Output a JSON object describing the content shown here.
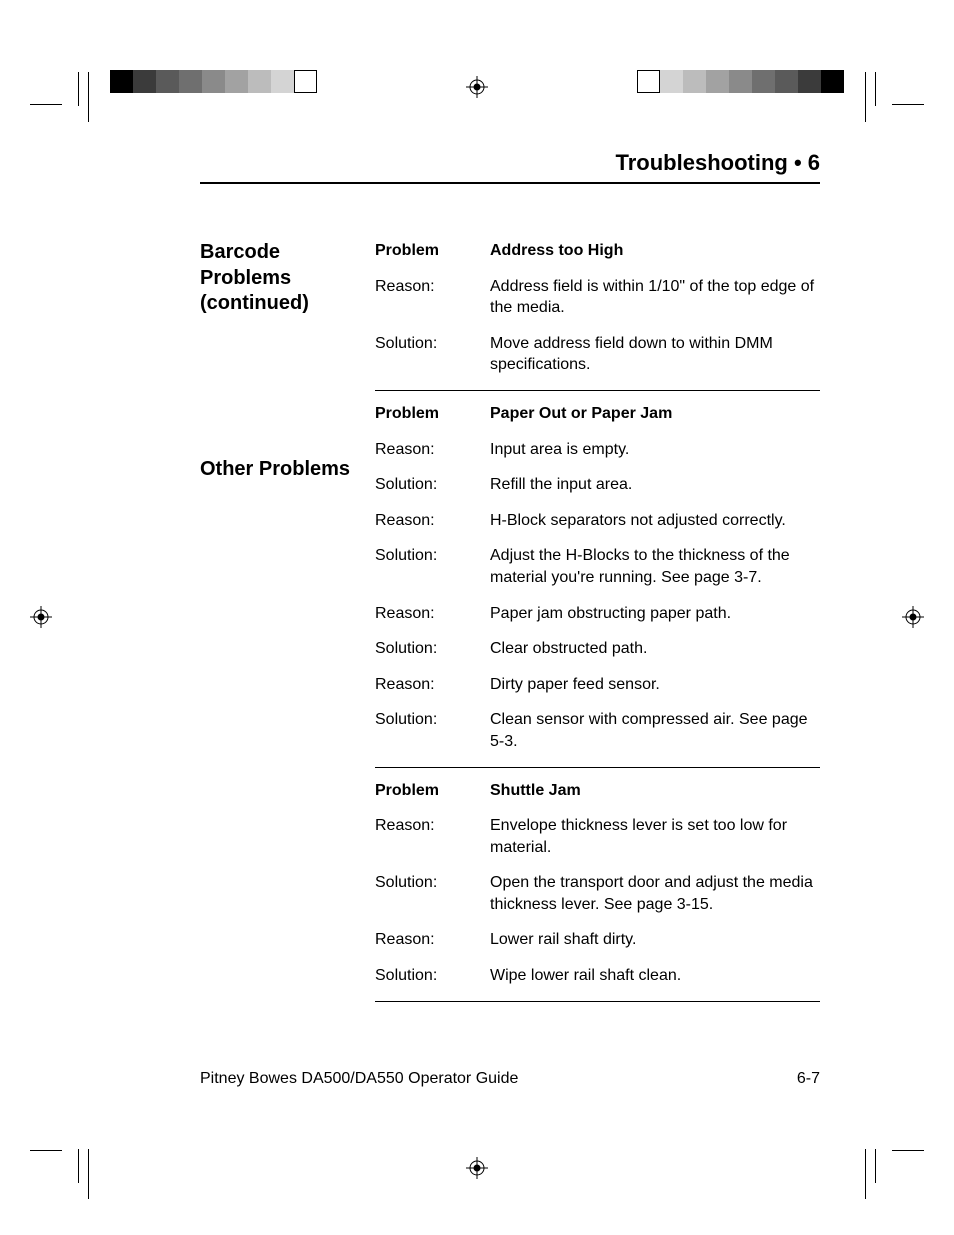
{
  "colorbar": {
    "swatches": [
      "#000000",
      "#3b3b3b",
      "#5a5a5a",
      "#6f6f6f",
      "#8a8a8a",
      "#a2a2a2",
      "#bcbcbc",
      "#d4d4d4",
      "#ffffff"
    ],
    "border": "#000000"
  },
  "header": {
    "title": "Troubleshooting  •  6"
  },
  "sidebar": {
    "titles": [
      "Barcode Problems (continued)",
      "Other Problems"
    ]
  },
  "sections": [
    {
      "problem": "Address too High",
      "rows": [
        {
          "label": "Reason:",
          "value": "Address field is within 1/10\" of the top edge of the media."
        },
        {
          "label": "Solution:",
          "value": "Move address field down to within DMM specifications."
        }
      ]
    },
    {
      "problem": "Paper Out or Paper Jam",
      "rows": [
        {
          "label": "Reason:",
          "value": "Input  area is empty."
        },
        {
          "label": "Solution:",
          "value": "Refill the input area."
        },
        {
          "label": "Reason:",
          "value": "H-Block separators not adjusted correctly."
        },
        {
          "label": "Solution:",
          "value": "Adjust the H-Blocks to the thickness of the material you're running. See page 3-7."
        },
        {
          "label": "Reason:",
          "value": "Paper jam obstructing paper path."
        },
        {
          "label": "Solution:",
          "value": "Clear obstructed path."
        },
        {
          "label": "Reason:",
          "value": "Dirty paper feed sensor."
        },
        {
          "label": "Solution:",
          "value": "Clean sensor with compressed air. See page 5-3."
        }
      ]
    },
    {
      "problem": "Shuttle Jam",
      "rows": [
        {
          "label": "Reason:",
          "value": "Envelope thickness lever is set too low for material."
        },
        {
          "label": "Solution:",
          "value": "Open the transport door and adjust the media thickness lever. See page 3-15."
        },
        {
          "label": "Reason:",
          "value": "Lower rail shaft dirty."
        },
        {
          "label": "Solution:",
          "value": "Wipe lower rail shaft clean."
        }
      ]
    }
  ],
  "labels": {
    "problem": "Problem"
  },
  "footer": {
    "left": "Pitney Bowes DA500/DA550 Operator Guide",
    "right": "6-7"
  }
}
